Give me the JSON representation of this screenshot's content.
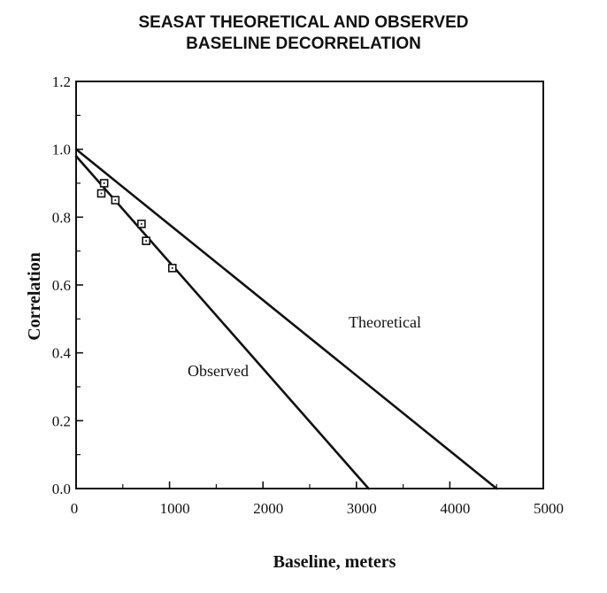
{
  "chart_data": {
    "type": "line",
    "title_line1": "SEASAT THEORETICAL AND OBSERVED",
    "title_line2": "BASELINE DECORRELATION",
    "xlabel": "Baseline, meters",
    "ylabel": "Correlation",
    "xlim": [
      0,
      5000
    ],
    "ylim": [
      0.0,
      1.2
    ],
    "x_ticks": [
      0,
      1000,
      2000,
      3000,
      4000,
      5000
    ],
    "y_ticks": [
      0.0,
      0.2,
      0.4,
      0.6,
      0.8,
      1.0,
      1.2
    ],
    "x_tick_labels": [
      "0",
      "1000",
      "2000",
      "3000",
      "4000",
      "5000"
    ],
    "y_tick_labels": [
      "0.0",
      "0.2",
      "0.4",
      "0.6",
      "0.8",
      "1.0",
      "1.2"
    ],
    "grid": false,
    "series": [
      {
        "name": "Theoretical",
        "line": [
          [
            0,
            1.0
          ],
          [
            4500,
            0.0
          ]
        ]
      },
      {
        "name": "Observed",
        "line": [
          [
            0,
            0.98
          ],
          [
            3130,
            0.0
          ]
        ],
        "points": [
          {
            "x": 270,
            "y": 0.87
          },
          {
            "x": 300,
            "y": 0.9
          },
          {
            "x": 420,
            "y": 0.85
          },
          {
            "x": 700,
            "y": 0.78
          },
          {
            "x": 750,
            "y": 0.73
          },
          {
            "x": 1030,
            "y": 0.65
          }
        ]
      }
    ]
  }
}
